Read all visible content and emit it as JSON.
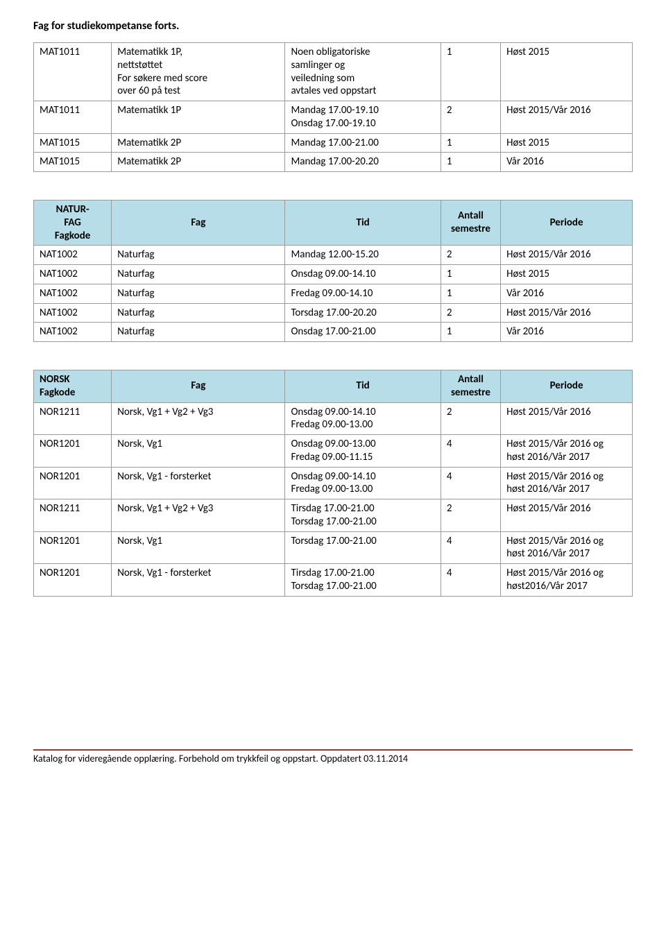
{
  "pageTitle": "Fag for studiekompetanse forts.",
  "colors": {
    "headerBg": "#b6dde8",
    "border": "#9a9a9a",
    "rule": "#943634"
  },
  "matTable": {
    "rows": [
      {
        "code": "MAT1011",
        "fag": "Matematikk 1P,\nnettstøttet\nFor søkere med score\nover 60 på test",
        "tid": "Noen obligatoriske\nsamlinger og\nveiledning som\navtales ved oppstart",
        "sem": "1",
        "per": "Høst 2015"
      },
      {
        "code": "MAT1011",
        "fag": "Matematikk 1P",
        "tid": "Mandag 17.00-19.10\nOnsdag 17.00-19.10",
        "sem": "2",
        "per": "Høst 2015/Vår 2016"
      },
      {
        "code": "MAT1015",
        "fag": "Matematikk 2P",
        "tid": "Mandag 17.00-21.00",
        "sem": "1",
        "per": "Høst 2015"
      },
      {
        "code": "MAT1015",
        "fag": "Matematikk 2P",
        "tid": "Mandag 17.00-20.20",
        "sem": "1",
        "per": "Vår 2016"
      }
    ]
  },
  "naturTable": {
    "headers": {
      "code": "NATUR-\nFAG\nFagkode",
      "fag": "Fag",
      "tid": "Tid",
      "sem": "Antall\nsemestre",
      "per": "Periode"
    },
    "rows": [
      {
        "code": "NAT1002",
        "fag": "Naturfag",
        "tid": "Mandag 12.00-15.20",
        "sem": "2",
        "per": "Høst 2015/Vår 2016"
      },
      {
        "code": "NAT1002",
        "fag": "Naturfag",
        "tid": "Onsdag 09.00-14.10",
        "sem": "1",
        "per": "Høst 2015"
      },
      {
        "code": "NAT1002",
        "fag": "Naturfag",
        "tid": "Fredag 09.00-14.10",
        "sem": "1",
        "per": "Vår 2016"
      },
      {
        "code": "NAT1002",
        "fag": "Naturfag",
        "tid": "Torsdag 17.00-20.20",
        "sem": "2",
        "per": "Høst 2015/Vår 2016"
      },
      {
        "code": "NAT1002",
        "fag": "Naturfag",
        "tid": "Onsdag 17.00-21.00",
        "sem": "1",
        "per": "Vår 2016"
      }
    ]
  },
  "norskTable": {
    "headers": {
      "code": "NORSK\nFagkode",
      "fag": "Fag",
      "tid": "Tid",
      "sem": "Antall\nsemestre",
      "per": "Periode"
    },
    "rows": [
      {
        "code": "NOR1211",
        "fag": "Norsk, Vg1 + Vg2 + Vg3",
        "tid": "Onsdag 09.00-14.10\nFredag 09.00-13.00",
        "sem": "2",
        "per": "Høst 2015/Vår 2016"
      },
      {
        "code": "NOR1201",
        "fag": "Norsk, Vg1",
        "tid": "Onsdag 09.00-13.00\nFredag 09.00-11.15",
        "sem": "4",
        "per": "Høst 2015/Vår 2016 og\nhøst 2016/Vår 2017"
      },
      {
        "code": "NOR1201",
        "fag": "Norsk, Vg1 - forsterket",
        "tid": "Onsdag 09.00-14.10\nFredag 09.00-13.00",
        "sem": "4",
        "per": "Høst 2015/Vår 2016 og\nhøst 2016/Vår 2017"
      },
      {
        "code": "NOR1211",
        "fag": "Norsk, Vg1 + Vg2 + Vg3",
        "tid": "Tirsdag 17.00-21.00\nTorsdag 17.00-21.00",
        "sem": "2",
        "per": "Høst 2015/Vår 2016"
      },
      {
        "code": "NOR1201",
        "fag": "Norsk, Vg1",
        "tid": "Torsdag 17.00-21.00",
        "sem": "4",
        "per": "Høst 2015/Vår 2016 og\nhøst 2016/Vår 2017"
      },
      {
        "code": "NOR1201",
        "fag": "Norsk, Vg1 - forsterket",
        "tid": "Tirsdag 17.00-21.00\nTorsdag 17.00-21.00",
        "sem": "4",
        "per": "Høst 2015/Vår 2016 og\nhøst2016/Vår 2017"
      }
    ]
  },
  "footer": "Katalog for videregående opplæring. Forbehold om trykkfeil og oppstart. Oppdatert 03.11.2014"
}
